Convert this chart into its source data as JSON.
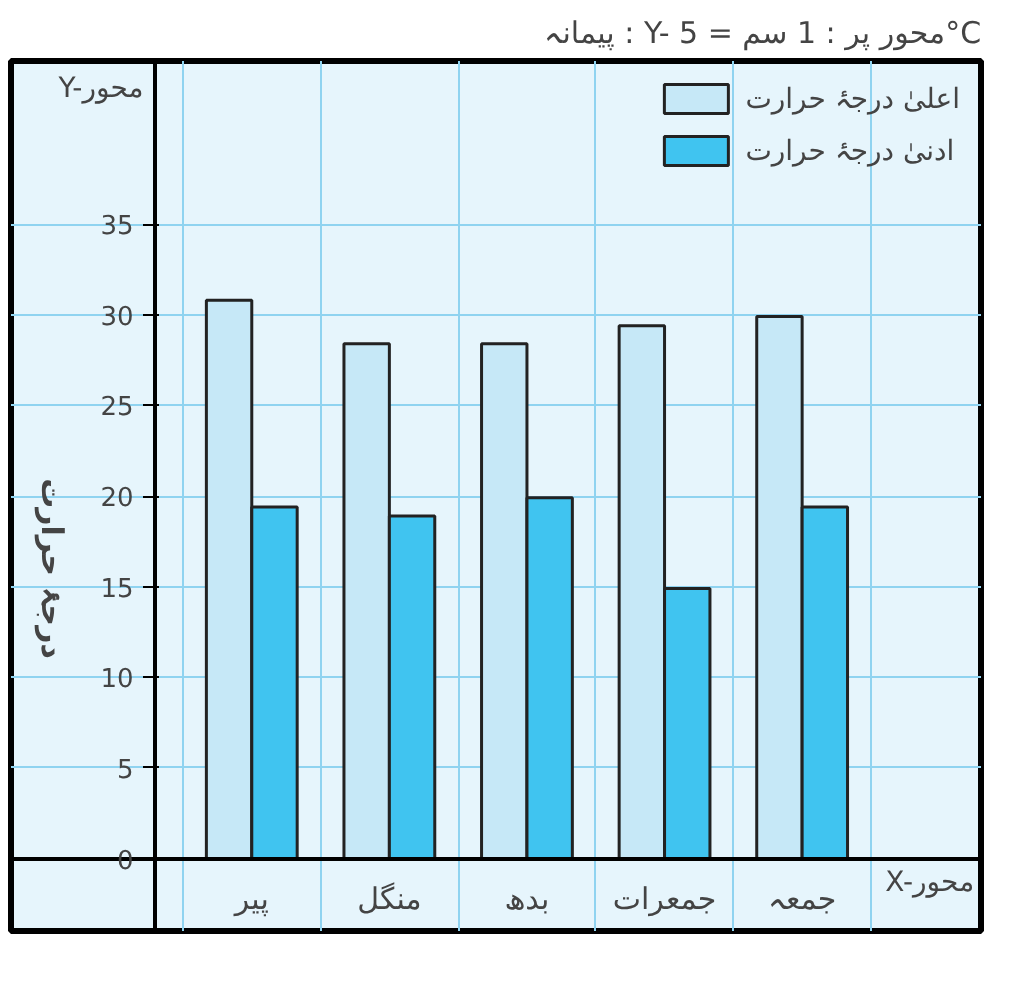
{
  "chart_data": {
    "type": "bar",
    "title": "پیمانہ : Y- محور پر : 1 سم = 5°C",
    "ylabel": "درجۂ حرارت",
    "annotations": [
      "X-محور",
      "Y-محور"
    ],
    "categories": [
      "پیر",
      "منگل",
      "بدھ",
      "جمعرات",
      "جمعہ"
    ],
    "series": [
      {
        "name": "اعلیٰ درجۂ حرارت",
        "color": "#c6e8f7",
        "values": [
          30.8,
          28.4,
          28.4,
          29.4,
          29.9
        ]
      },
      {
        "name": "ادنیٰ درجۂ حرارت",
        "color": "#40c4f0",
        "values": [
          19.4,
          18.9,
          19.9,
          14.9,
          19.4
        ]
      }
    ],
    "ylim": [
      -4,
      44
    ],
    "yticks": [
      0,
      5,
      10,
      15,
      20,
      25,
      30,
      35
    ],
    "grid": true,
    "legend": "top right"
  }
}
